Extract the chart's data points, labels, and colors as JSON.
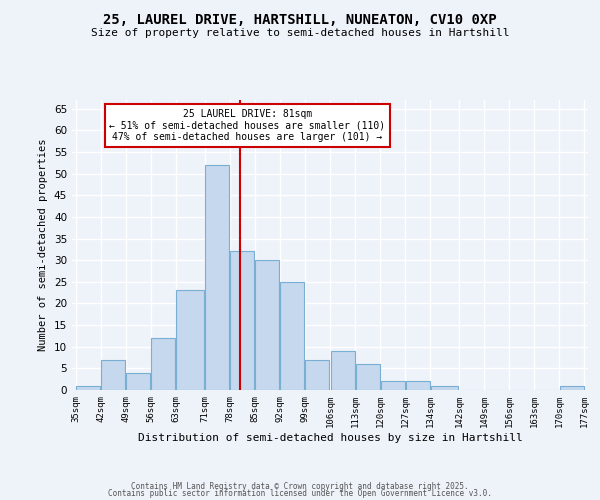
{
  "title1": "25, LAUREL DRIVE, HARTSHILL, NUNEATON, CV10 0XP",
  "title2": "Size of property relative to semi-detached houses in Hartshill",
  "xlabel": "Distribution of semi-detached houses by size in Hartshill",
  "ylabel": "Number of semi-detached properties",
  "bar_edges": [
    35,
    42,
    49,
    56,
    63,
    71,
    78,
    85,
    92,
    99,
    106,
    113,
    120,
    127,
    134,
    142,
    149,
    156,
    163,
    170,
    177
  ],
  "bar_heights": [
    1,
    7,
    4,
    12,
    23,
    52,
    32,
    30,
    25,
    7,
    9,
    6,
    2,
    2,
    1,
    0,
    0,
    0,
    0,
    1
  ],
  "bar_color": "#c5d8ed",
  "bar_edge_color": "#7aafd4",
  "vline_x": 81,
  "vline_color": "#cc0000",
  "annotation_text": "25 LAUREL DRIVE: 81sqm\n← 51% of semi-detached houses are smaller (110)\n47% of semi-detached houses are larger (101) →",
  "annotation_box_color": "#ffffff",
  "annotation_box_edge_color": "#cc0000",
  "tick_labels": [
    "35sqm",
    "42sqm",
    "49sqm",
    "56sqm",
    "63sqm",
    "71sqm",
    "78sqm",
    "85sqm",
    "92sqm",
    "99sqm",
    "106sqm",
    "113sqm",
    "120sqm",
    "127sqm",
    "134sqm",
    "142sqm",
    "149sqm",
    "156sqm",
    "163sqm",
    "170sqm",
    "177sqm"
  ],
  "yticks": [
    0,
    5,
    10,
    15,
    20,
    25,
    30,
    35,
    40,
    45,
    50,
    55,
    60,
    65
  ],
  "ylim": [
    0,
    67
  ],
  "footer1": "Contains HM Land Registry data © Crown copyright and database right 2025.",
  "footer2": "Contains public sector information licensed under the Open Government Licence v3.0.",
  "bg_color": "#eef2f9",
  "grid_color": "#ffffff"
}
